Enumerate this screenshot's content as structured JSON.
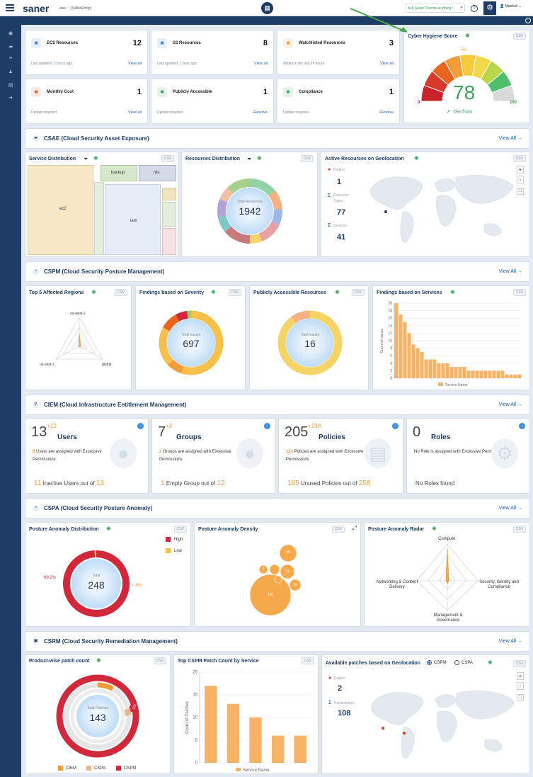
{
  "header": {
    "brand": "saner",
    "sub1": "aws",
    "sub2": "(SaflerEmbp)",
    "ask": "Ask Saner Plasma anything !",
    "user": "Manhuil"
  },
  "nav": [
    "eye-icon",
    "cloud-icon",
    "list-icon",
    "warning-icon",
    "book-icon",
    "logout-icon"
  ],
  "summary": [
    {
      "icon": "ec2-icon",
      "title": "EC2 Resources",
      "value": "12",
      "note": "Last updated: 2 hours ago",
      "link": "View all",
      "color": "#3b7dd8"
    },
    {
      "icon": "s3-icon",
      "title": "S3 Resources",
      "value": "8",
      "note": "Last updated: 1 hour ago",
      "link": "View all",
      "color": "#3b7dd8"
    },
    {
      "icon": "star-icon",
      "title": "Watchlisted Resources",
      "value": "3",
      "note": "Added in the last 24 hours",
      "link": "View all",
      "color": "#f29c38"
    },
    {
      "icon": "dollar-icon",
      "title": "Monthly Cost",
      "value": "1",
      "note": "Update required",
      "link": "View all",
      "color": "#e05a3a"
    },
    {
      "icon": "house-icon",
      "title": "Publicly Accessible",
      "value": "1",
      "note": "Update required",
      "link": "Resolve",
      "color": "#3aa35a"
    },
    {
      "icon": "shield-check-icon",
      "title": "Compliance",
      "value": "1",
      "note": "Update required",
      "link": "Resolve",
      "color": "#3aa35a"
    }
  ],
  "hygiene": {
    "title": "Cyber Hygiene Score",
    "score": "78",
    "min": "0",
    "mid": "50",
    "max": "100",
    "trend": "0% from",
    "csv": "CSV"
  },
  "sections": {
    "csae": "CSAE (Cloud Security Asset Exposure)",
    "cspm": "CSPM (Cloud Security Posture Management)",
    "ciem": "CIEM (Cloud Infrastructure Entitlement Management)",
    "cspa": "CSPA (Cloud Security Posture Anomaly)",
    "csrm": "CSRM (Cloud Security Remediation Management)",
    "view_all": "View All"
  },
  "csae": {
    "service_dist": {
      "title": "Service Distribution",
      "boxes": [
        "backup",
        "rds",
        "ec2",
        "iam"
      ]
    },
    "resources_dist": {
      "title": "Resources Distribution",
      "center_label": "Total Resources",
      "total": "1942"
    },
    "geo": {
      "title": "Active Resources on Geolocation",
      "region_label": "Region",
      "region": "1",
      "types_label": "Resource Types",
      "types": "77",
      "services_label": "Services",
      "services": "41",
      "zoom_in": "+",
      "zoom_out": "-"
    }
  },
  "cspm": {
    "top5": {
      "title": "Top 5 Affected Regions",
      "labels": [
        "us-west-2",
        "us-east-1",
        "global"
      ]
    },
    "severity": {
      "title": "Findings based on Severity",
      "center_label": "Total Issues",
      "total": "697"
    },
    "public": {
      "title": "Publicly Accessible Resources",
      "center_label": "Total Issues",
      "total": "16"
    },
    "services": {
      "title": "Findings based on Services"
    }
  },
  "ciem": [
    {
      "num": "13",
      "plus": "+12",
      "label": "Users",
      "desc_n": "6",
      "desc": "Users are assigned with Excessive Permissions",
      "bot_n": "11",
      "bot": "Inactive Users out of",
      "bot_t": "13"
    },
    {
      "num": "7",
      "plus": "+3",
      "label": "Groups",
      "desc_n": "2",
      "desc": "Groups are assigned with Excessive Permissions",
      "bot_n": "1",
      "bot": "Empty Group out of",
      "bot_t": "12"
    },
    {
      "num": "205",
      "plus": "+198",
      "label": "Policies",
      "desc_n": "133",
      "desc": "Policies are assigned with Excessive Permissions",
      "bot_n": "185",
      "bot": "Unused Policies out of",
      "bot_t": "258"
    },
    {
      "num": "0",
      "plus": "",
      "label": "Roles",
      "desc_n": "",
      "desc": "No Role is assigned with Excessive Permissions",
      "bot_n": "",
      "bot": "No Roles found",
      "bot_t": ""
    }
  ],
  "cspa": {
    "dist": {
      "title": "Posture Anomaly Distribution",
      "center_label": "Total",
      "total": "248",
      "high_pct": "99.2%",
      "low_pct": "0.8%",
      "legend": [
        "High",
        "Low"
      ]
    },
    "density": {
      "title": "Posture Anomaly Density",
      "bubbles": [
        "45",
        "21",
        "14",
        "7",
        "150"
      ]
    },
    "radar": {
      "title": "Posture Anomaly Radar",
      "axes": [
        "Compute",
        "Security, Identity and Compliance",
        "Management & Governance",
        "Networking & Content Delivery"
      ]
    }
  },
  "csrm": {
    "product": {
      "title": "Product-wise patch count",
      "center_label": "Total Patches",
      "total": "143",
      "slice_label": "121",
      "legend": [
        "CIEM",
        "CSPA",
        "CSPM"
      ]
    },
    "top": {
      "title": "Top CSPM Patch Count by Service",
      "ylabel": "Count of Patches",
      "legend": "Service Name"
    },
    "geo": {
      "title": "Available patches based on Geolocation",
      "radio": [
        "CSPM",
        "CSPA"
      ],
      "region_label": "Region",
      "region": "2",
      "rem_label": "Remediation",
      "rem": "108",
      "zoom_in": "+",
      "zoom_out": "-"
    }
  },
  "csv": "CSV",
  "chart_data": [
    {
      "type": "bar",
      "title": "Findings based on Services",
      "ylabel": "Count of issues",
      "xlabel": "",
      "legend": "Service Name",
      "ylim": [
        0,
        20
      ],
      "yticks": [
        "0",
        "2",
        "4",
        "6",
        "8",
        "10",
        "12",
        "14",
        "16",
        "18",
        "20"
      ],
      "values": [
        20,
        17,
        15,
        12,
        9,
        8,
        7,
        5,
        5,
        5,
        4,
        4,
        4,
        3,
        3,
        3,
        3,
        2,
        2,
        2,
        2,
        2,
        2,
        2,
        2,
        2,
        1,
        1,
        1,
        1
      ]
    },
    {
      "type": "bar",
      "title": "Top CSPM Patch Count by Service",
      "ylabel": "Count of Patches",
      "legend": "Service Name",
      "ylim": [
        0,
        20
      ],
      "yticks": [
        "0",
        "5",
        "10",
        "15",
        "20"
      ],
      "values": [
        17,
        13,
        10,
        6,
        6
      ]
    },
    {
      "type": "pie",
      "title": "Posture Anomaly Distribution",
      "categories": [
        "High",
        "Low"
      ],
      "values": [
        99.2,
        0.8
      ],
      "colors": [
        "#d2283c",
        "#f6c04a"
      ]
    }
  ]
}
